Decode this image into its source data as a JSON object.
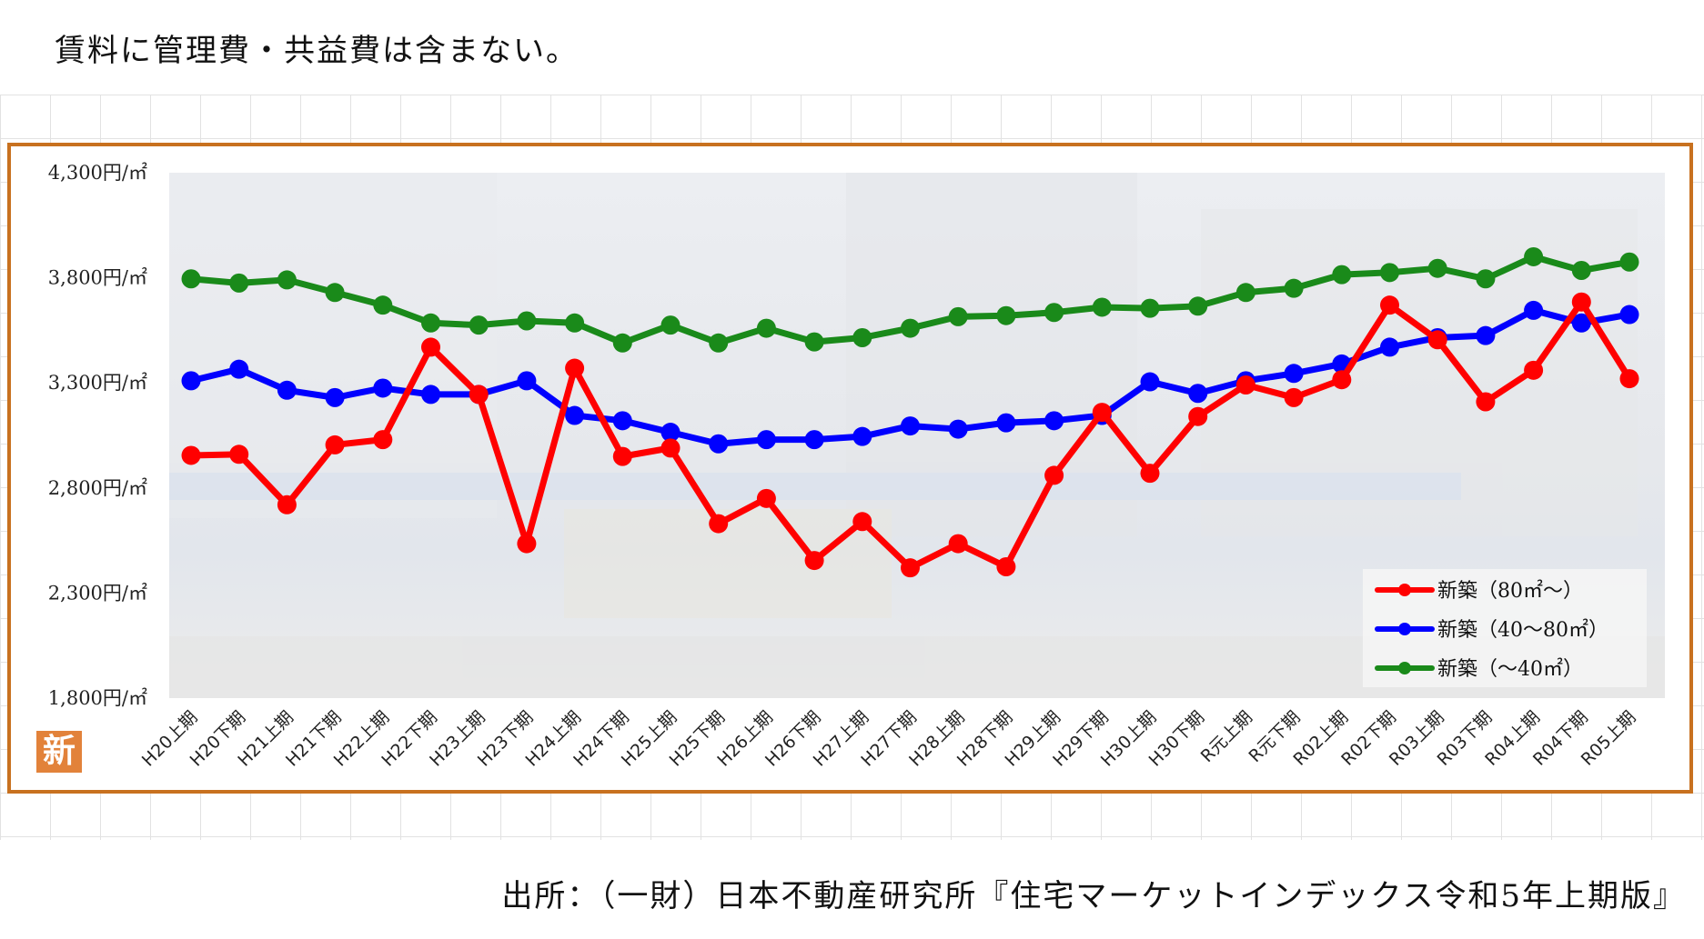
{
  "note": "賃料に管理費・共益費は含まない。",
  "source": "出所：（一財）日本不動産研究所『住宅マーケットインデックス令和5年上期版』",
  "badge": "新",
  "chart_data": {
    "type": "line",
    "categories": [
      "H20上期",
      "H20下期",
      "H21上期",
      "H21下期",
      "H22上期",
      "H22下期",
      "H23上期",
      "H23下期",
      "H24上期",
      "H24下期",
      "H25上期",
      "H25下期",
      "H26上期",
      "H26下期",
      "H27上期",
      "H27下期",
      "H28上期",
      "H28下期",
      "H29上期",
      "H29下期",
      "H30上期",
      "H30下期",
      "R元上期",
      "R元下期",
      "R02上期",
      "R02下期",
      "R03上期",
      "R03下期",
      "R04上期",
      "R04下期",
      "R05上期"
    ],
    "ylim": [
      1800,
      4300
    ],
    "yticks": [
      1800,
      2300,
      2800,
      3300,
      3800,
      4300
    ],
    "ytick_labels": [
      "1,800円/㎡",
      "2,300円/㎡",
      "2,800円/㎡",
      "3,300円/㎡",
      "3,800円/㎡",
      "4,300円/㎡"
    ],
    "legend_position": "bottom-right",
    "series": [
      {
        "name": "新築（80㎡～）",
        "color": "#ff0000",
        "values": [
          2955,
          2960,
          2720,
          3005,
          3030,
          3470,
          3245,
          2535,
          3370,
          2950,
          2990,
          2630,
          2750,
          2455,
          2640,
          2420,
          2535,
          2425,
          2860,
          3160,
          2870,
          3140,
          3290,
          3230,
          3315,
          3670,
          3505,
          3210,
          3360,
          3685,
          3320
        ]
      },
      {
        "name": "新築（40～80㎡）",
        "color": "#0000ff",
        "values": [
          3310,
          3365,
          3265,
          3230,
          3275,
          3245,
          3245,
          3310,
          3145,
          3120,
          3065,
          3010,
          3030,
          3030,
          3045,
          3095,
          3080,
          3110,
          3120,
          3145,
          3305,
          3250,
          3310,
          3345,
          3390,
          3470,
          3515,
          3525,
          3645,
          3585,
          3625
        ]
      },
      {
        "name": "新築（～40㎡）",
        "color": "#1a8a1a",
        "values": [
          3795,
          3775,
          3790,
          3730,
          3670,
          3585,
          3575,
          3595,
          3585,
          3490,
          3575,
          3490,
          3560,
          3495,
          3515,
          3560,
          3615,
          3620,
          3635,
          3660,
          3655,
          3665,
          3730,
          3750,
          3815,
          3825,
          3845,
          3795,
          3900,
          3835,
          3875
        ]
      }
    ]
  }
}
